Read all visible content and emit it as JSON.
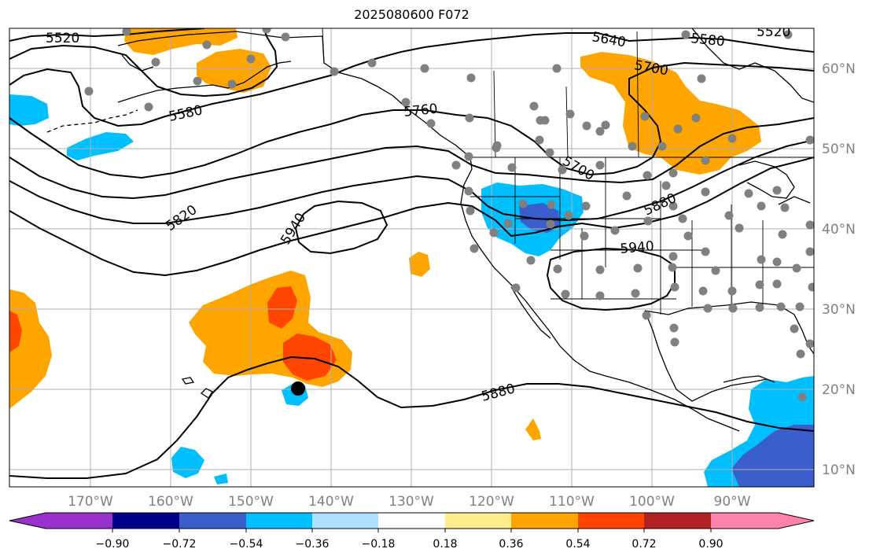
{
  "title": "2025080600 F072",
  "map": {
    "lon_ticks": [
      "170°W",
      "160°W",
      "150°W",
      "140°W",
      "130°W",
      "120°W",
      "110°W",
      "100°W",
      "90°W"
    ],
    "lat_ticks": [
      "60°N",
      "50°N",
      "40°N",
      "30°N",
      "20°N",
      "10°N"
    ],
    "contours": [
      {
        "label": "5520",
        "color": "#000000"
      },
      {
        "label": "5580",
        "color": "#000000"
      },
      {
        "label": "5640",
        "color": "#000000"
      },
      {
        "label": "5580",
        "color": "#000000"
      },
      {
        "label": "5520",
        "color": "#000000"
      },
      {
        "label": "5700",
        "color": "#000000"
      },
      {
        "label": "5760",
        "color": "#000000"
      },
      {
        "label": "5700",
        "color": "#000000"
      },
      {
        "label": "5820",
        "color": "#000000"
      },
      {
        "label": "5940",
        "color": "#000000"
      },
      {
        "label": "5880",
        "color": "#000000"
      },
      {
        "label": "5940",
        "color": "#000000"
      },
      {
        "label": "5880",
        "color": "#000000"
      }
    ],
    "colors": {
      "ocean": "#ffffff",
      "coast": "#000000",
      "station": "#808080",
      "grid": "#b0b0b0"
    }
  },
  "colorbar": {
    "tick_labels": [
      "−0.90",
      "−0.72",
      "−0.54",
      "−0.36",
      "−0.18",
      "0.18",
      "0.36",
      "0.54",
      "0.72",
      "0.90"
    ],
    "colors": [
      "#9932cc",
      "#00008b",
      "#3a5fcd",
      "#00bfff",
      "#b0e2ff",
      "#ffffff",
      "#ffec8b",
      "#ffa500",
      "#ff4500",
      "#b22222",
      "#ff82ab"
    ]
  }
}
